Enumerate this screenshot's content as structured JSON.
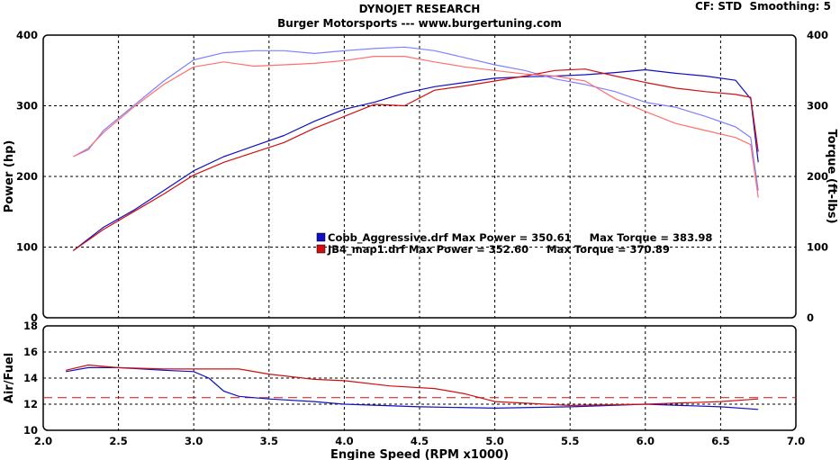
{
  "header": {
    "title": "DYNOJET RESEARCH",
    "subtitle": "Burger Motorsports --- www.burgertuning.com",
    "settings": "CF: STD  Smoothing: 5"
  },
  "chart_data": [
    {
      "type": "line",
      "name": "power-torque",
      "xlabel": "",
      "ylabel": "Power (hp)",
      "y2label": "Torque (ft-lbs)",
      "xlim": [
        2.0,
        7.0
      ],
      "ylim": [
        0,
        400
      ],
      "y2lim": [
        0,
        400
      ],
      "yticks": [
        "0",
        "100",
        "200",
        "300",
        "400"
      ],
      "y2ticks": [
        "0",
        "100",
        "200",
        "300",
        "400"
      ],
      "grid": true,
      "legend": [
        {
          "text": "Cobb_Aggressive.drf Max Power = 350.61     Max Torque = 383.98",
          "color": "#1010c0"
        },
        {
          "text": "JB4_map1.drf Max Power = 352.60     Max Torque = 370.89",
          "color": "#d01010"
        }
      ],
      "series": [
        {
          "file": "Cobb_Aggressive.drf",
          "measure": "power",
          "color": "#1010c0",
          "x": [
            2.2,
            2.4,
            2.6,
            2.8,
            3.0,
            3.2,
            3.4,
            3.6,
            3.8,
            4.0,
            4.2,
            4.4,
            4.6,
            4.8,
            5.0,
            5.2,
            5.4,
            5.6,
            5.8,
            6.0,
            6.2,
            6.4,
            6.6,
            6.7,
            6.75
          ],
          "y": [
            95,
            128,
            152,
            180,
            208,
            228,
            243,
            258,
            278,
            295,
            305,
            318,
            327,
            333,
            339,
            341,
            342,
            344,
            347,
            351,
            346,
            342,
            336,
            310,
            220
          ]
        },
        {
          "file": "Cobb_Aggressive.drf",
          "measure": "torque",
          "color": "#8080ff",
          "x": [
            2.2,
            2.3,
            2.4,
            2.6,
            2.8,
            3.0,
            3.2,
            3.4,
            3.6,
            3.8,
            4.0,
            4.2,
            4.4,
            4.6,
            4.8,
            5.0,
            5.2,
            5.4,
            5.6,
            5.8,
            6.0,
            6.2,
            6.4,
            6.6,
            6.7,
            6.75
          ],
          "y": [
            228,
            238,
            265,
            300,
            335,
            365,
            375,
            378,
            378,
            374,
            378,
            381,
            383,
            378,
            368,
            358,
            350,
            338,
            330,
            320,
            305,
            298,
            285,
            270,
            255,
            180
          ]
        },
        {
          "file": "JB4_map1.drf",
          "measure": "power",
          "color": "#d01010",
          "x": [
            2.2,
            2.4,
            2.6,
            2.8,
            3.0,
            3.2,
            3.4,
            3.6,
            3.8,
            4.0,
            4.2,
            4.4,
            4.6,
            4.8,
            5.0,
            5.2,
            5.4,
            5.6,
            5.8,
            6.0,
            6.2,
            6.4,
            6.6,
            6.7,
            6.75
          ],
          "y": [
            95,
            125,
            150,
            175,
            202,
            220,
            234,
            248,
            268,
            285,
            302,
            300,
            322,
            328,
            335,
            342,
            350,
            352,
            342,
            333,
            325,
            320,
            316,
            312,
            235
          ]
        },
        {
          "file": "JB4_map1.drf",
          "measure": "torque",
          "color": "#ff7070",
          "x": [
            2.2,
            2.3,
            2.4,
            2.6,
            2.8,
            3.0,
            3.2,
            3.4,
            3.6,
            3.8,
            4.0,
            4.2,
            4.4,
            4.6,
            4.8,
            5.0,
            5.2,
            5.4,
            5.6,
            5.8,
            6.0,
            6.2,
            6.4,
            6.6,
            6.7,
            6.75
          ],
          "y": [
            228,
            240,
            262,
            298,
            330,
            355,
            362,
            356,
            358,
            360,
            364,
            370,
            370,
            362,
            355,
            350,
            345,
            342,
            335,
            310,
            292,
            275,
            265,
            255,
            245,
            170
          ]
        }
      ]
    },
    {
      "type": "line",
      "name": "air-fuel",
      "xlabel": "Engine Speed (RPM x1000)",
      "ylabel": "Air/Fuel",
      "xlim": [
        2.0,
        7.0
      ],
      "ylim": [
        10,
        18
      ],
      "yticks": [
        "10",
        "12",
        "14",
        "16",
        "18"
      ],
      "xticks": [
        "2.0",
        "2.5",
        "3.0",
        "3.5",
        "4.0",
        "4.5",
        "5.0",
        "5.5",
        "6.0",
        "6.5",
        "7.0"
      ],
      "reference_line": 12.5,
      "grid": true,
      "series": [
        {
          "file": "Cobb_Aggressive.drf",
          "measure": "air-fuel",
          "color": "#1010c0",
          "x": [
            2.15,
            2.3,
            2.5,
            2.8,
            3.0,
            3.1,
            3.2,
            3.3,
            3.5,
            3.8,
            4.0,
            4.5,
            5.0,
            5.5,
            6.0,
            6.5,
            6.75
          ],
          "y": [
            14.5,
            14.8,
            14.8,
            14.6,
            14.5,
            14.0,
            13.0,
            12.6,
            12.4,
            12.2,
            12.0,
            11.8,
            11.7,
            11.8,
            12.0,
            11.8,
            11.6
          ]
        },
        {
          "file": "JB4_map1.drf",
          "measure": "air-fuel",
          "color": "#d01010",
          "x": [
            2.15,
            2.3,
            2.5,
            2.8,
            3.0,
            3.3,
            3.5,
            3.8,
            4.0,
            4.3,
            4.6,
            4.8,
            5.0,
            5.5,
            6.0,
            6.5,
            6.75
          ],
          "y": [
            14.6,
            15.0,
            14.8,
            14.7,
            14.7,
            14.7,
            14.3,
            13.9,
            13.8,
            13.4,
            13.2,
            12.8,
            12.2,
            11.9,
            12.0,
            12.2,
            12.4
          ]
        }
      ]
    }
  ]
}
